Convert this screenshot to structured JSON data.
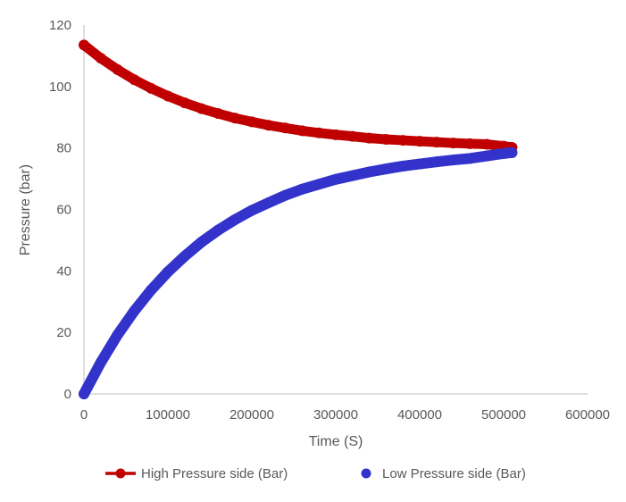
{
  "chart_data": {
    "type": "scatter",
    "title": "",
    "xlabel": "Time (S)",
    "ylabel": "Pressure (bar)",
    "xlim": [
      0,
      600000
    ],
    "ylim": [
      0,
      120
    ],
    "x_ticks": [
      "0",
      "100000",
      "200000",
      "300000",
      "400000",
      "500000",
      "600000"
    ],
    "y_ticks": [
      "0",
      "20",
      "40",
      "60",
      "80",
      "100",
      "120"
    ],
    "grid": false,
    "legend_position": "bottom",
    "x": [
      0,
      20000,
      40000,
      60000,
      80000,
      100000,
      120000,
      140000,
      160000,
      180000,
      200000,
      220000,
      240000,
      260000,
      280000,
      300000,
      320000,
      340000,
      360000,
      380000,
      400000,
      420000,
      440000,
      460000,
      480000,
      500000,
      510000
    ],
    "series": [
      {
        "name": "High Pressure side (Bar)",
        "color": "#c00000",
        "style": "line-marker",
        "values": [
          113.5,
          109.2,
          105.5,
          102.2,
          99.4,
          96.9,
          94.7,
          92.8,
          91.2,
          89.7,
          88.5,
          87.4,
          86.5,
          85.6,
          84.9,
          84.3,
          83.8,
          83.2,
          82.8,
          82.5,
          82.2,
          81.9,
          81.6,
          81.4,
          81.2,
          80.6,
          80.2
        ]
      },
      {
        "name": "Low Pressure side (Bar)",
        "color": "#3333cc",
        "style": "marker",
        "values": [
          0,
          10.2,
          19.2,
          27.0,
          33.8,
          39.7,
          44.8,
          49.4,
          53.3,
          56.7,
          59.7,
          62.2,
          64.6,
          66.6,
          68.2,
          69.8,
          71.0,
          72.2,
          73.2,
          74.1,
          74.8,
          75.5,
          76.1,
          76.6,
          77.4,
          78.2,
          78.5
        ]
      }
    ]
  }
}
